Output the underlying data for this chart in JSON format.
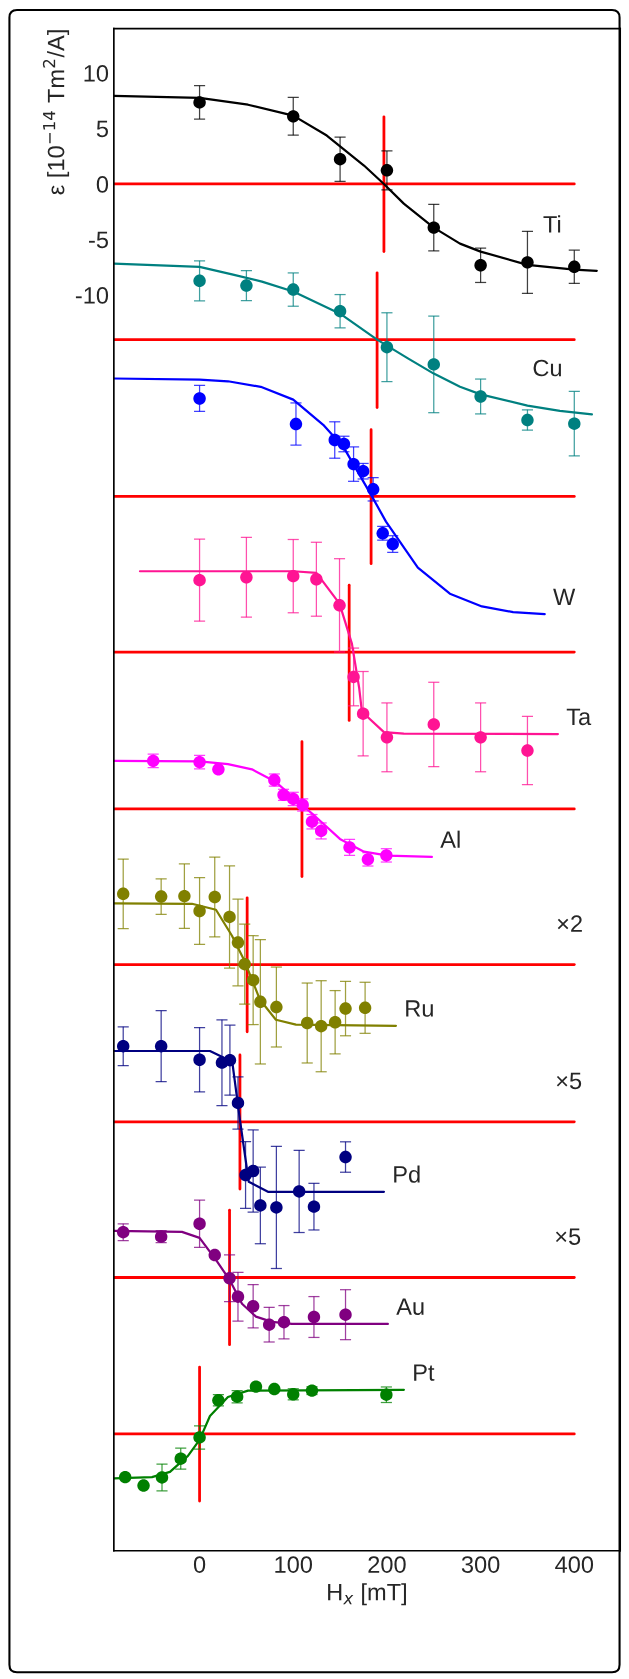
{
  "chart_data": {
    "type": "scatter",
    "xlabel": "H$_{x}$ [mT]",
    "ylabel": "ε [10$^{−14}$ Tm$^{2}$/A]",
    "xlim": [
      -91.5,
      449
    ],
    "ylim": [
      -123.1,
      14.0
    ],
    "xticks": [
      0,
      100,
      200,
      300,
      400
    ],
    "yticks": [
      {
        "value": 10,
        "label": "10"
      },
      {
        "value": 5,
        "label": "5"
      },
      {
        "value": 0,
        "label": "0"
      },
      {
        "value": -5,
        "label": "-5"
      },
      {
        "value": -10,
        "label": "-10"
      }
    ],
    "grid": false,
    "legend": false,
    "series": [
      {
        "type": "line",
        "color": "#ff0000",
        "x": [
          -91,
          400
        ],
        "values": [
          0,
          0
        ]
      },
      {
        "type": "line",
        "color": "#ff0000",
        "x": [
          196.8,
          196.8
        ],
        "values": [
          6.05,
          -6.09
        ]
      },
      {
        "type": "line",
        "color": "#ff0000",
        "x": [
          -91,
          400
        ],
        "values": [
          -14.02,
          -14.02
        ]
      },
      {
        "type": "line",
        "color": "#ff0000",
        "x": [
          189.5,
          189.5
        ],
        "values": [
          -8.0,
          -20.14
        ]
      },
      {
        "type": "line",
        "color": "#ff0000",
        "x": [
          -91,
          400
        ],
        "values": [
          -28.14,
          -28.14
        ]
      },
      {
        "type": "line",
        "color": "#ff0000",
        "x": [
          183.1,
          183.1
        ],
        "values": [
          -22.13,
          -34.2
        ]
      },
      {
        "type": "line",
        "color": "#ff0000",
        "x": [
          -91,
          400
        ],
        "values": [
          -42.16,
          -42.16
        ]
      },
      {
        "type": "line",
        "color": "#ff0000",
        "x": [
          159.7,
          159.7
        ],
        "values": [
          -36.14,
          -48.32
        ]
      },
      {
        "type": "line",
        "color": "#ff0000",
        "x": [
          -91,
          400
        ],
        "values": [
          -56.29,
          -56.29
        ]
      },
      {
        "type": "line",
        "color": "#ff0000",
        "x": [
          109.3,
          109.3
        ],
        "values": [
          -50.23,
          -62.38
        ]
      },
      {
        "type": "line",
        "color": "#ff0000",
        "x": [
          -91,
          400
        ],
        "values": [
          -70.31,
          -70.31
        ]
      },
      {
        "type": "line",
        "color": "#ff0000",
        "x": [
          50.8,
          50.8
        ],
        "values": [
          -64.29,
          -76.36
        ]
      },
      {
        "type": "line",
        "color": "#ff0000",
        "x": [
          -91,
          400
        ],
        "values": [
          -84.47,
          -84.47
        ]
      },
      {
        "type": "line",
        "color": "#ff0000",
        "x": [
          43.1,
          43.1
        ],
        "values": [
          -78.45,
          -90.52
        ]
      },
      {
        "type": "line",
        "color": "#ff0000",
        "x": [
          -91,
          400
        ],
        "values": [
          -98.49,
          -98.49
        ]
      },
      {
        "type": "line",
        "color": "#ff0000",
        "x": [
          32,
          32
        ],
        "values": [
          -92.43,
          -104.54
        ]
      },
      {
        "type": "line",
        "color": "#ff0000",
        "x": [
          -91,
          400
        ],
        "values": [
          -112.58,
          -112.58
        ]
      },
      {
        "type": "line",
        "color": "#ff0000",
        "x": [
          0,
          0
        ],
        "values": [
          -106.56,
          -118.63
        ]
      },
      {
        "type": "line",
        "name": "Ti",
        "color": "#000000",
        "x": [
          -91.4,
          0,
          51.7,
          100,
          135.8,
          175.5,
          196.8,
          218,
          250,
          278,
          300,
          350,
          400,
          424
        ],
        "values": [
          7.93,
          7.75,
          7.14,
          6.16,
          4.36,
          1.66,
          0,
          -1.77,
          -3.93,
          -5.37,
          -6.09,
          -7.28,
          -7.71,
          -7.82
        ]
      },
      {
        "type": "scatter",
        "marker": "circle",
        "color": "#000000",
        "x": [
          0,
          100,
          150,
          200,
          250,
          300,
          350,
          400
        ],
        "values": [
          7.35,
          6.09,
          2.23,
          1.23,
          -3.93,
          -7.32,
          -7.06,
          -7.46
        ],
        "errors": [
          1.5,
          1.7,
          2.0,
          1.75,
          2.1,
          1.55,
          2.8,
          1.5
        ]
      },
      {
        "type": "line",
        "name": "Cu",
        "color": "#008080",
        "x": [
          -91.4,
          0,
          34.6,
          66.6,
          100,
          150,
          189.5,
          222.4,
          250,
          278,
          300,
          350,
          384.6,
          418.8
        ],
        "values": [
          -7.17,
          -7.46,
          -8.14,
          -8.79,
          -9.69,
          -11.68,
          -14.02,
          -15.71,
          -17.08,
          -18.27,
          -18.95,
          -19.96,
          -20.43,
          -20.76
        ]
      },
      {
        "type": "scatter",
        "marker": "circle",
        "color": "#008080",
        "x": [
          0,
          50,
          100,
          150,
          200,
          250,
          300,
          350,
          400
        ],
        "values": [
          -8.72,
          -9.15,
          -9.51,
          -11.46,
          -14.7,
          -16.25,
          -19.14,
          -21.26,
          -21.59
        ],
        "errors": [
          1.8,
          1.35,
          1.5,
          1.5,
          3.1,
          4.35,
          1.57,
          0.92,
          2.9
        ]
      },
      {
        "type": "line",
        "name": "W",
        "color": "#0000ff",
        "x": [
          -91.4,
          0,
          30.3,
          65.3,
          100,
          132,
          154,
          184,
          199,
          233,
          267.2,
          301.4,
          334.7,
          368.4
        ],
        "values": [
          -17.52,
          -17.62,
          -17.77,
          -18.27,
          -19.42,
          -21.69,
          -23.75,
          -28.14,
          -30.41,
          -34.56,
          -36.9,
          -38.05,
          -38.56,
          -38.74
        ]
      },
      {
        "type": "scatter",
        "marker": "circle",
        "color": "#0000ff",
        "x": [
          0,
          102.9,
          144.3,
          154.1,
          164.4,
          174.6,
          185.3,
          195.5,
          206.2
        ],
        "values": [
          -19.32,
          -21.62,
          -23.06,
          -23.42,
          -25.23,
          -25.87,
          -27.5,
          -31.46,
          -32.43
        ],
        "errors": [
          1.17,
          1.9,
          1.64,
          0.7,
          1.55,
          0.7,
          1.05,
          0.62,
          0.75
        ]
      },
      {
        "type": "line",
        "name": "Ta",
        "color": "#ff1493",
        "x": [
          -63.6,
          100,
          124.7,
          149.4,
          162.6,
          170.3,
          173.3,
          196.8,
          218,
          382.5
        ],
        "values": [
          -34.88,
          -34.88,
          -35.03,
          -37.8,
          -41.4,
          -45.35,
          -47.53,
          -49.37,
          -49.5,
          -49.55
        ]
      },
      {
        "type": "scatter",
        "marker": "circle",
        "color": "#ff1493",
        "x": [
          0,
          50,
          100,
          124.7,
          149.4,
          164.4,
          174.6,
          200,
          250,
          300,
          350
        ],
        "values": [
          -35.68,
          -35.42,
          -35.32,
          -35.6,
          -37.95,
          -44.4,
          -47.71,
          -49.84,
          -48.68,
          -49.84,
          -51.03
        ],
        "errors": [
          3.7,
          3.6,
          3.3,
          3.33,
          4.2,
          2.6,
          3.8,
          3.1,
          3.8,
          3.1,
          3.07
        ]
      },
      {
        "type": "line",
        "name": "Al",
        "color": "#ff00ff",
        "x": [
          -91.4,
          0,
          30.3,
          55.9,
          81.5,
          102.9,
          124.2,
          149.8,
          175.5,
          201,
          248
        ],
        "values": [
          -51.96,
          -52.0,
          -52.25,
          -52.72,
          -53.87,
          -55.46,
          -57.01,
          -58.99,
          -60.14,
          -60.5,
          -60.61
        ]
      },
      {
        "type": "scatter",
        "marker": "circle",
        "color": "#ff00ff",
        "x": [
          -49.5,
          0,
          20.1,
          79.8,
          89.6,
          100,
          110.1,
          120,
          129.8,
          160.1,
          179.7,
          199.4
        ],
        "values": [
          -51.96,
          -52.07,
          -52.72,
          -53.69,
          -55.02,
          -55.39,
          -55.93,
          -57.44,
          -58.27,
          -59.75,
          -60.83,
          -60.47
        ],
        "errors": [
          0.6,
          0.6,
          null,
          0.55,
          0.5,
          0.6,
          0.55,
          0.65,
          0.72,
          0.72,
          0.6,
          0.6
        ]
      },
      {
        "type": "line",
        "name": "Ru",
        "color": "#808000",
        "x": [
          -91.4,
          -8.1,
          17.5,
          34.6,
          47.4,
          64.5,
          81.5,
          102.9,
          209.6
        ],
        "values": [
          -64.79,
          -64.83,
          -65.37,
          -67.71,
          -69.87,
          -73.48,
          -75.28,
          -75.71,
          -75.82
        ]
      },
      {
        "type": "scatter",
        "marker": "circle",
        "color": "#808000",
        "x": [
          -81.5,
          -41,
          -16.2,
          0,
          16.2,
          32,
          41,
          48.2,
          57.2,
          64.9,
          82,
          114.9,
          129.8,
          144.7,
          155.8,
          176.7
        ],
        "values": [
          -63.93,
          -64.18,
          -64.14,
          -65.48,
          -64.22,
          -66.02,
          -68.32,
          -70.27,
          -71.71,
          -73.66,
          -74.13,
          -75.57,
          -75.86,
          -75.5,
          -74.27,
          -74.2
        ],
        "errors": [
          3.13,
          1.6,
          2.9,
          3.0,
          3.6,
          4.6,
          3.9,
          3.6,
          4.0,
          5.6,
          3.6,
          3.6,
          4.1,
          2.85,
          2.45,
          2.3
        ]
      },
      {
        "type": "line",
        "name": "Pd",
        "color": "#000080",
        "x": [
          -91.4,
          11.1,
          26,
          34.6,
          43.1,
          52.5,
          73,
          196.8
        ],
        "values": [
          -78.09,
          -78.09,
          -78.7,
          -78.88,
          -84.29,
          -89.87,
          -90.77,
          -90.77
        ]
      },
      {
        "type": "scatter",
        "marker": "circle",
        "color": "#000080",
        "x": [
          -81.5,
          -41,
          0,
          23.9,
          32.4,
          41,
          49.1,
          57.2,
          64.9,
          82,
          106.3,
          122.1,
          155.8
        ],
        "values": [
          -77.66,
          -77.66,
          -78.88,
          -79.14,
          -78.92,
          -82.77,
          -89.26,
          -88.9,
          -92.0,
          -92.18,
          -90.74,
          -92.11,
          -87.64
        ],
        "errors": [
          1.75,
          3.2,
          2.9,
          3.86,
          3.15,
          2.35,
          3.0,
          3.7,
          3.45,
          5.5,
          3.7,
          2.1,
          1.37
        ]
      },
      {
        "type": "line",
        "name": "Au",
        "color": "#800080",
        "x": [
          -91.4,
          -18.8,
          0,
          17.5,
          32,
          45.3,
          60.2,
          77.3,
          98.6,
          201
        ],
        "values": [
          -94.3,
          -94.38,
          -94.92,
          -96.9,
          -98.7,
          -100.86,
          -102.02,
          -102.49,
          -102.67,
          -102.67
        ]
      },
      {
        "type": "scatter",
        "marker": "circle",
        "color": "#800080",
        "x": [
          -81.5,
          -41,
          0,
          16.2,
          32,
          41,
          57.2,
          74.3,
          90.1,
          122.1,
          155.8
        ],
        "values": [
          -94.41,
          -94.81,
          -93.65,
          -96.47,
          -98.56,
          -100.22,
          -101.08,
          -102.74,
          -102.52,
          -102.05,
          -101.84
        ],
        "errors": [
          0.75,
          0.55,
          2.13,
          null,
          2.1,
          2.2,
          1.95,
          1.56,
          1.5,
          1.84,
          2.25
        ]
      },
      {
        "type": "line",
        "name": "Pt",
        "color": "#008000",
        "x": [
          -91.4,
          -50.8,
          -31.6,
          -12.4,
          0,
          11.1,
          30.3,
          51.7,
          218.1
        ],
        "values": [
          -116.58,
          -116.47,
          -116.0,
          -114.56,
          -113.12,
          -110.96,
          -109.26,
          -108.68,
          -108.61
        ]
      },
      {
        "type": "scatter",
        "marker": "circle",
        "color": "#008000",
        "x": [
          -79.4,
          -59.8,
          -40.1,
          -20.1,
          0,
          20.1,
          40.1,
          60.2,
          79.8,
          100,
          120,
          199.4
        ],
        "values": [
          -116.47,
          -117.23,
          -116.5,
          -114.81,
          -112.9,
          -109.55,
          -109.23,
          -108.32,
          -108.54,
          -109.01,
          -108.68,
          -109.05
        ],
        "errors": [
          null,
          null,
          1.2,
          0.95,
          1.05,
          0.5,
          0.55,
          null,
          null,
          0.5,
          0.35,
          0.7
        ]
      }
    ],
    "annotations": [
      {
        "text": "×2",
        "x": 395,
        "y": -70.31
      },
      {
        "text": "×5",
        "x": 394,
        "y": -84.47
      },
      {
        "text": "×5",
        "x": 393,
        "y": -98.49
      }
    ]
  }
}
